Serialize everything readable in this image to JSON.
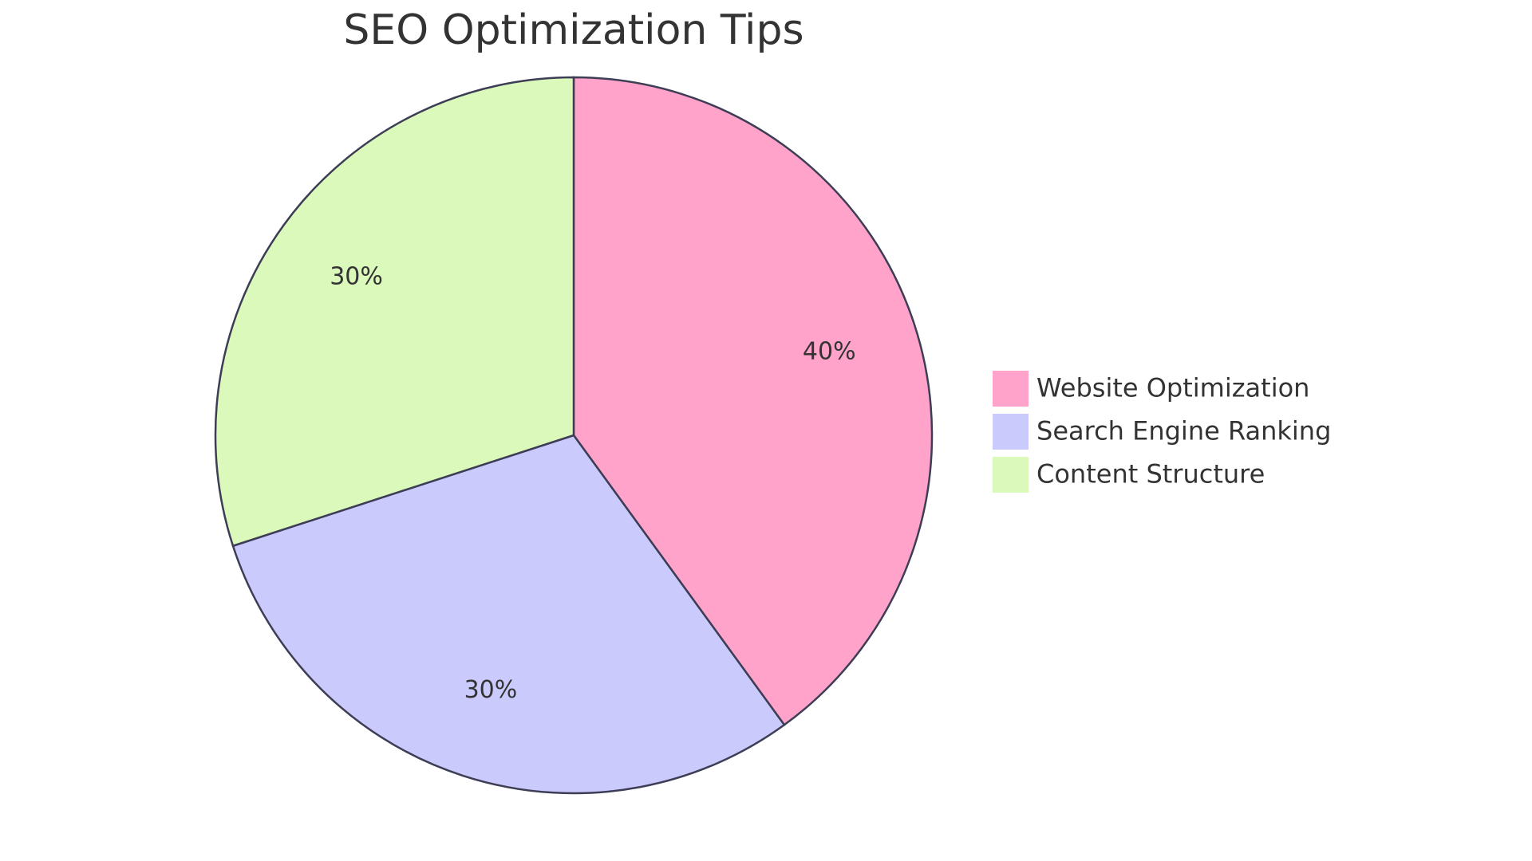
{
  "chart_data": {
    "type": "pie",
    "title": "SEO Optimization Tips",
    "categories": [
      "Website Optimization",
      "Search Engine Ranking",
      "Content Structure"
    ],
    "values": [
      40,
      30,
      30
    ],
    "value_labels": [
      "40%",
      "30%",
      "30%"
    ],
    "colors": [
      "#ffa3cb",
      "#cacafd",
      "#dbf9bb"
    ],
    "legend": "right"
  }
}
